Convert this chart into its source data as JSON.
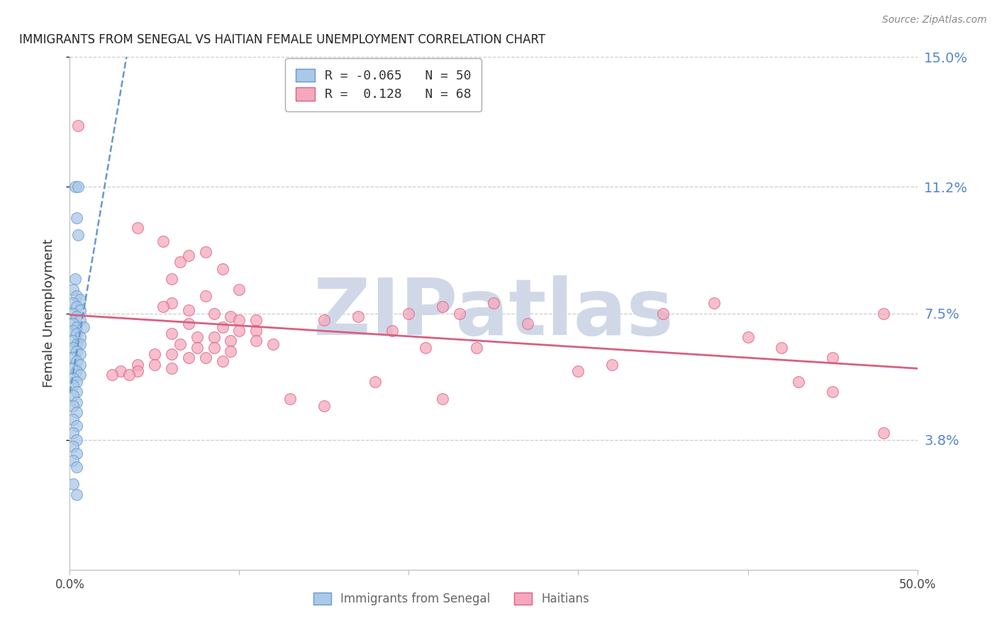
{
  "title": "IMMIGRANTS FROM SENEGAL VS HAITIAN FEMALE UNEMPLOYMENT CORRELATION CHART",
  "source": "Source: ZipAtlas.com",
  "ylabel": "Female Unemployment",
  "x_min": 0.0,
  "x_max": 0.5,
  "y_min": 0.0,
  "y_max": 0.15,
  "y_ticks": [
    0.038,
    0.075,
    0.112,
    0.15
  ],
  "y_tick_labels": [
    "3.8%",
    "7.5%",
    "11.2%",
    "15.0%"
  ],
  "x_ticks": [
    0.0,
    0.1,
    0.2,
    0.3,
    0.4,
    0.5
  ],
  "x_tick_labels": [
    "0.0%",
    "",
    "",
    "",
    "",
    "50.0%"
  ],
  "series1_label": "Immigrants from Senegal",
  "series2_label": "Haitians",
  "series1_color": "#aac8e8",
  "series2_color": "#f5a8bc",
  "series1_R": -0.065,
  "series1_N": 50,
  "series2_R": 0.128,
  "series2_N": 68,
  "trend1_color": "#6699cc",
  "trend2_color": "#d96080",
  "watermark": "ZIPatlas",
  "watermark_color": "#d0d8e8",
  "title_color": "#222222",
  "axis_label_color": "#5588cc",
  "background_color": "#ffffff",
  "series1_points": [
    [
      0.003,
      0.112
    ],
    [
      0.005,
      0.112
    ],
    [
      0.004,
      0.103
    ],
    [
      0.005,
      0.098
    ],
    [
      0.003,
      0.085
    ],
    [
      0.002,
      0.082
    ],
    [
      0.004,
      0.08
    ],
    [
      0.006,
      0.079
    ],
    [
      0.002,
      0.078
    ],
    [
      0.004,
      0.077
    ],
    [
      0.006,
      0.076
    ],
    [
      0.002,
      0.075
    ],
    [
      0.004,
      0.074
    ],
    [
      0.006,
      0.073
    ],
    [
      0.002,
      0.072
    ],
    [
      0.004,
      0.071
    ],
    [
      0.008,
      0.071
    ],
    [
      0.002,
      0.07
    ],
    [
      0.004,
      0.069
    ],
    [
      0.006,
      0.068
    ],
    [
      0.002,
      0.067
    ],
    [
      0.004,
      0.066
    ],
    [
      0.006,
      0.066
    ],
    [
      0.002,
      0.065
    ],
    [
      0.004,
      0.064
    ],
    [
      0.006,
      0.063
    ],
    [
      0.002,
      0.062
    ],
    [
      0.004,
      0.061
    ],
    [
      0.006,
      0.06
    ],
    [
      0.002,
      0.059
    ],
    [
      0.004,
      0.058
    ],
    [
      0.006,
      0.057
    ],
    [
      0.002,
      0.056
    ],
    [
      0.004,
      0.055
    ],
    [
      0.002,
      0.054
    ],
    [
      0.004,
      0.052
    ],
    [
      0.002,
      0.051
    ],
    [
      0.004,
      0.049
    ],
    [
      0.002,
      0.048
    ],
    [
      0.004,
      0.046
    ],
    [
      0.002,
      0.044
    ],
    [
      0.004,
      0.042
    ],
    [
      0.002,
      0.04
    ],
    [
      0.004,
      0.038
    ],
    [
      0.002,
      0.036
    ],
    [
      0.004,
      0.034
    ],
    [
      0.002,
      0.032
    ],
    [
      0.004,
      0.03
    ],
    [
      0.002,
      0.025
    ],
    [
      0.004,
      0.022
    ]
  ],
  "series2_points": [
    [
      0.005,
      0.13
    ],
    [
      0.04,
      0.1
    ],
    [
      0.055,
      0.096
    ],
    [
      0.065,
      0.09
    ],
    [
      0.08,
      0.093
    ],
    [
      0.06,
      0.085
    ],
    [
      0.07,
      0.092
    ],
    [
      0.09,
      0.088
    ],
    [
      0.1,
      0.082
    ],
    [
      0.08,
      0.08
    ],
    [
      0.06,
      0.078
    ],
    [
      0.055,
      0.077
    ],
    [
      0.07,
      0.076
    ],
    [
      0.085,
      0.075
    ],
    [
      0.095,
      0.074
    ],
    [
      0.1,
      0.073
    ],
    [
      0.11,
      0.073
    ],
    [
      0.07,
      0.072
    ],
    [
      0.09,
      0.071
    ],
    [
      0.1,
      0.07
    ],
    [
      0.11,
      0.07
    ],
    [
      0.06,
      0.069
    ],
    [
      0.075,
      0.068
    ],
    [
      0.085,
      0.068
    ],
    [
      0.095,
      0.067
    ],
    [
      0.11,
      0.067
    ],
    [
      0.12,
      0.066
    ],
    [
      0.065,
      0.066
    ],
    [
      0.075,
      0.065
    ],
    [
      0.085,
      0.065
    ],
    [
      0.095,
      0.064
    ],
    [
      0.05,
      0.063
    ],
    [
      0.06,
      0.063
    ],
    [
      0.07,
      0.062
    ],
    [
      0.08,
      0.062
    ],
    [
      0.09,
      0.061
    ],
    [
      0.04,
      0.06
    ],
    [
      0.05,
      0.06
    ],
    [
      0.06,
      0.059
    ],
    [
      0.03,
      0.058
    ],
    [
      0.04,
      0.058
    ],
    [
      0.025,
      0.057
    ],
    [
      0.035,
      0.057
    ],
    [
      0.15,
      0.073
    ],
    [
      0.17,
      0.074
    ],
    [
      0.2,
      0.075
    ],
    [
      0.22,
      0.077
    ],
    [
      0.23,
      0.075
    ],
    [
      0.25,
      0.078
    ],
    [
      0.27,
      0.072
    ],
    [
      0.19,
      0.07
    ],
    [
      0.21,
      0.065
    ],
    [
      0.24,
      0.065
    ],
    [
      0.18,
      0.055
    ],
    [
      0.22,
      0.05
    ],
    [
      0.13,
      0.05
    ],
    [
      0.15,
      0.048
    ],
    [
      0.35,
      0.075
    ],
    [
      0.38,
      0.078
    ],
    [
      0.32,
      0.06
    ],
    [
      0.3,
      0.058
    ],
    [
      0.4,
      0.068
    ],
    [
      0.42,
      0.065
    ],
    [
      0.45,
      0.062
    ],
    [
      0.48,
      0.075
    ],
    [
      0.43,
      0.055
    ],
    [
      0.45,
      0.052
    ],
    [
      0.48,
      0.04
    ]
  ]
}
